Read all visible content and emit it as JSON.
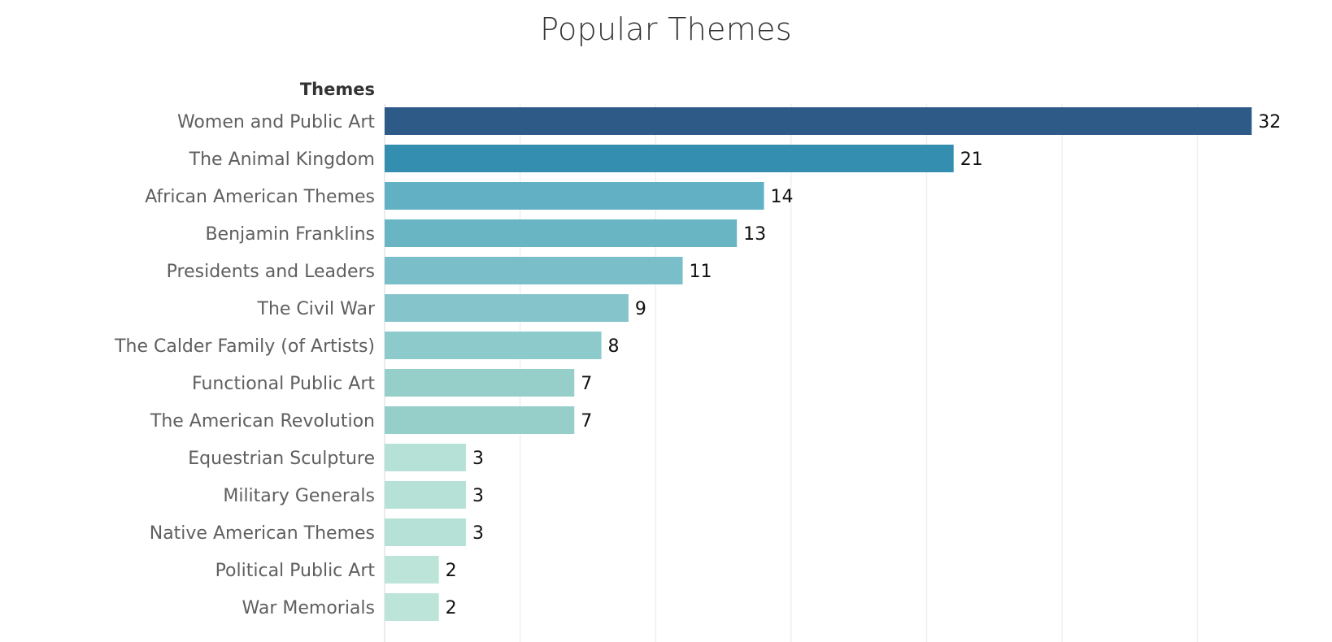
{
  "chart_data": {
    "type": "bar",
    "orientation": "horizontal",
    "title": "Popular Themes",
    "row_header": "Themes",
    "categories": [
      "Women and Public Art",
      "The Animal Kingdom",
      "African American Themes",
      "Benjamin Franklins",
      "Presidents and Leaders",
      "The Civil War",
      "The Calder Family (of Artists)",
      "Functional Public Art",
      "The American Revolution",
      "Equestrian Sculpture",
      "Military Generals",
      "Native American Themes",
      "Political Public Art",
      "War Memorials"
    ],
    "values": [
      32,
      21,
      14,
      13,
      11,
      9,
      8,
      7,
      7,
      3,
      3,
      3,
      2,
      2
    ],
    "xlim": [
      0,
      35
    ],
    "grid": "vertical",
    "legend": "none",
    "colors": [
      "#2d5a87",
      "#338eaf",
      "#61b0c3",
      "#69b5c4",
      "#79bec8",
      "#84c4ca",
      "#8ccacc",
      "#96ceca",
      "#96ceca",
      "#b6e1d6",
      "#b6e1d6",
      "#b6e1d6",
      "#bce4d8",
      "#bce4d8"
    ]
  }
}
